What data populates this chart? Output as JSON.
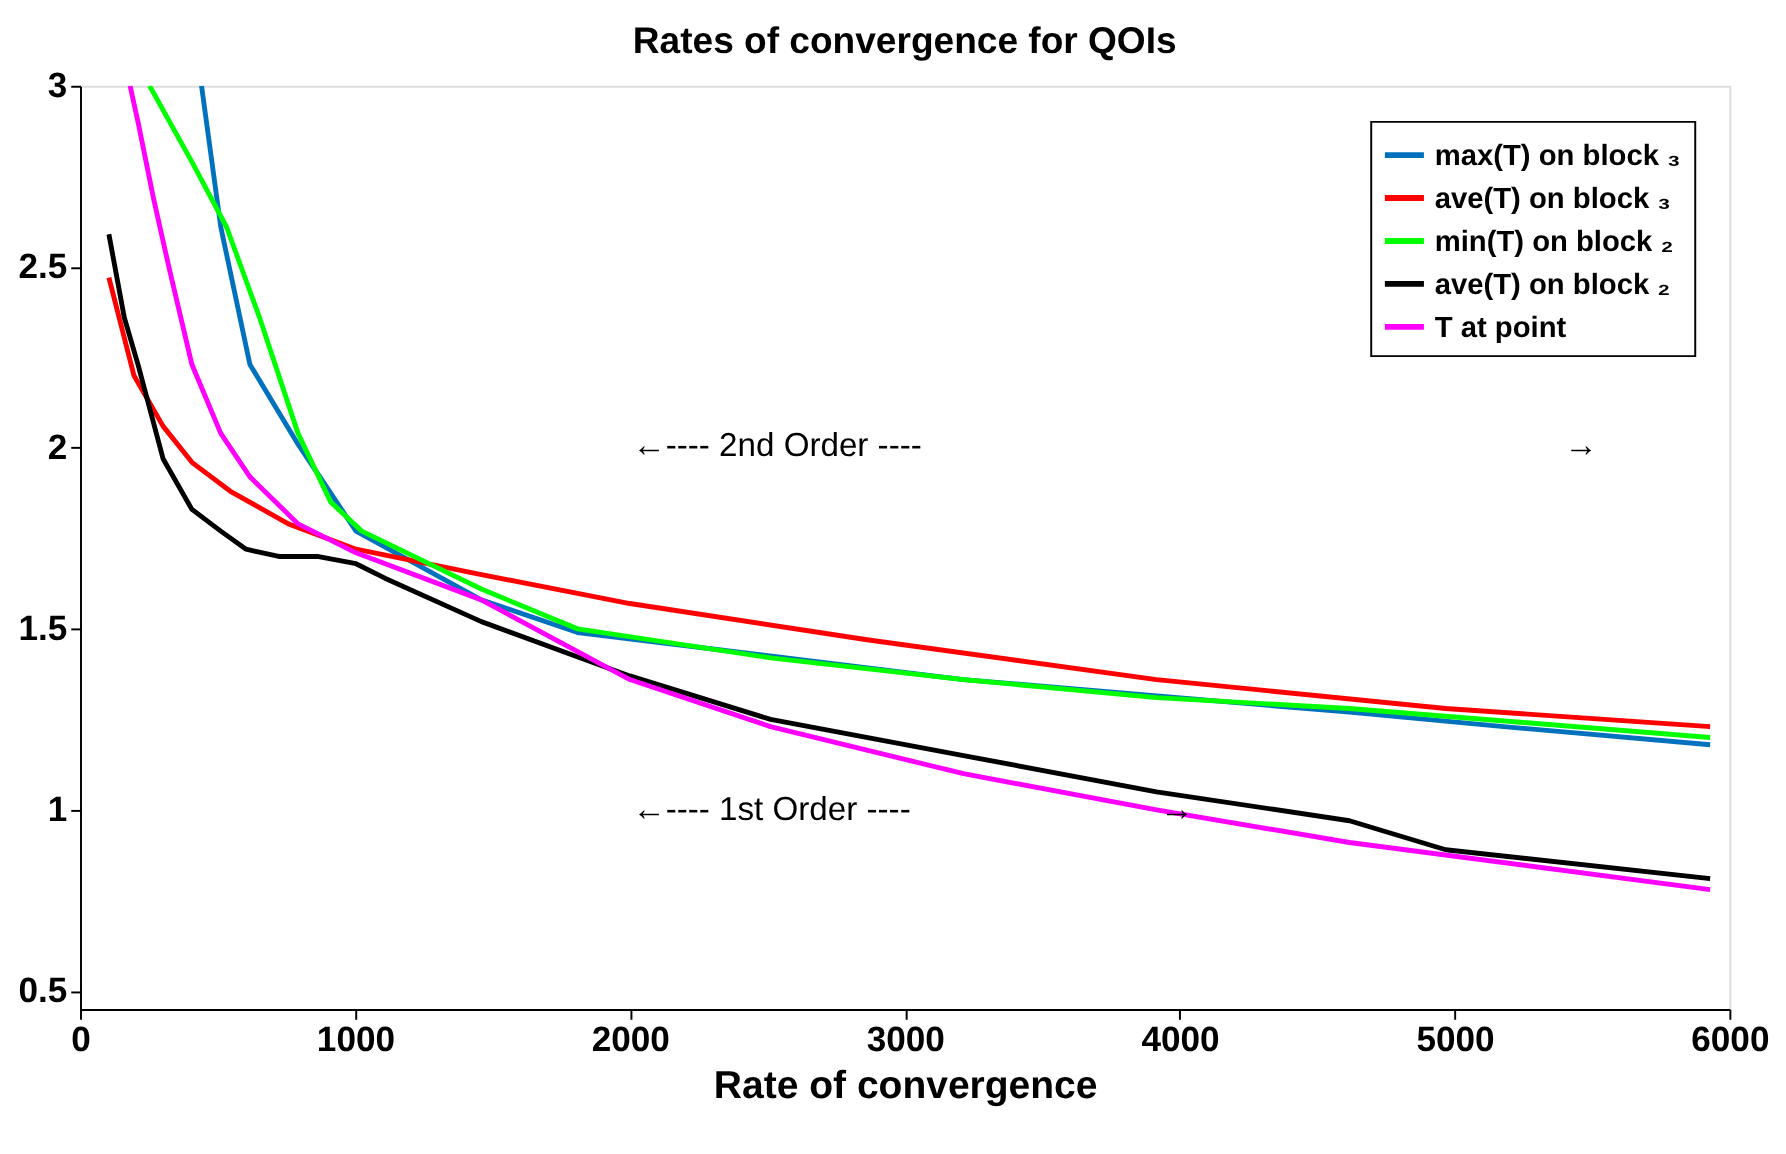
{
  "chart_data": {
    "type": "line",
    "title": "Rates of convergence for QOIs",
    "xlabel": "Rate of convergence",
    "xlim": [
      0,
      6000
    ],
    "ylim": [
      0.45,
      3
    ],
    "xticks": [
      0,
      1000,
      2000,
      3000,
      4000,
      5000,
      6000
    ],
    "yticks": [
      0.5,
      1,
      1.5,
      2,
      2.5,
      3
    ],
    "grid": false,
    "legend": "top right",
    "line_style": "solid",
    "marker": "none",
    "series": [
      {
        "name": "max(T) on block ₃",
        "color": "#0072bd",
        "x": [
          442,
          512,
          618,
          793,
          1004,
          1460,
          1810,
          3214,
          4618,
          5179,
          5930
        ],
        "values": [
          3.0,
          2.61,
          2.23,
          2.01,
          1.77,
          1.58,
          1.49,
          1.36,
          1.27,
          1.23,
          1.18
        ]
      },
      {
        "name": "ave(T) on block ₃",
        "color": "#ff0000",
        "x": [
          105,
          196,
          302,
          407,
          547,
          758,
          1004,
          1460,
          2000,
          2863,
          3916,
          4968,
          5930
        ],
        "values": [
          2.47,
          2.2,
          2.06,
          1.96,
          1.88,
          1.79,
          1.72,
          1.65,
          1.57,
          1.47,
          1.36,
          1.28,
          1.23
        ]
      },
      {
        "name": "min(T) on block ₂",
        "color": "#00ff00",
        "x": [
          253,
          407,
          533,
          653,
          793,
          912,
          1025,
          1460,
          1810,
          2512,
          3214,
          3916,
          4618,
          5930
        ],
        "values": [
          3.0,
          2.79,
          2.61,
          2.36,
          2.04,
          1.85,
          1.77,
          1.61,
          1.5,
          1.42,
          1.36,
          1.31,
          1.28,
          1.2
        ]
      },
      {
        "name": "ave(T) on block ₂",
        "color": "#000000",
        "x": [
          105,
          161,
          211,
          302,
          407,
          512,
          604,
          723,
          863,
          1004,
          1109,
          1460,
          2000,
          2512,
          3214,
          3916,
          4618,
          4968,
          5930
        ],
        "values": [
          2.59,
          2.36,
          2.23,
          1.97,
          1.83,
          1.77,
          1.72,
          1.7,
          1.7,
          1.68,
          1.64,
          1.52,
          1.37,
          1.25,
          1.15,
          1.05,
          0.97,
          0.89,
          0.81
        ]
      },
      {
        "name": "T at point",
        "color": "#ff00ff",
        "x": [
          182,
          211,
          267,
          323,
          407,
          512,
          618,
          793,
          1004,
          1460,
          2000,
          2512,
          3214,
          3916,
          4618,
          5930
        ],
        "values": [
          3.0,
          2.9,
          2.69,
          2.5,
          2.23,
          2.04,
          1.92,
          1.79,
          1.71,
          1.58,
          1.36,
          1.23,
          1.1,
          1.0,
          0.91,
          0.78
        ]
      }
    ],
    "annotations": [
      "←---- 2nd Order ----",
      "→",
      "←---- 1st Order ----",
      "→"
    ]
  }
}
